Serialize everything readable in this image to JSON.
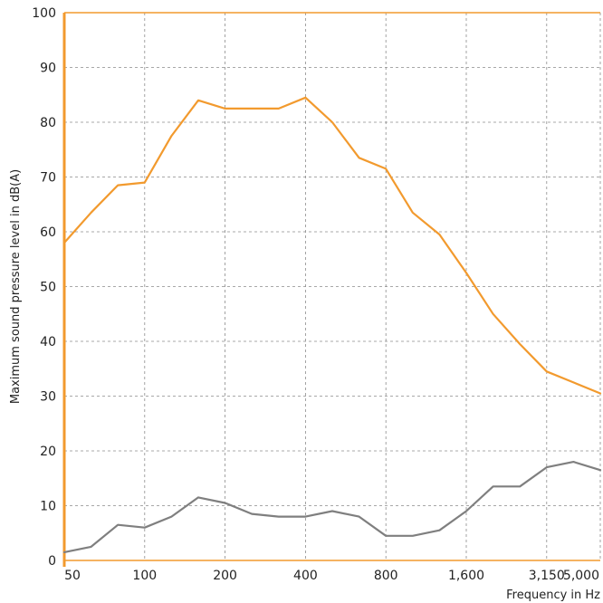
{
  "colors": {
    "accent": "#f29a2e",
    "series_gray": "#7f7f7f",
    "grid": "#8c8c8c",
    "text": "#222222"
  },
  "chart_data": {
    "type": "line",
    "title": "",
    "xlabel": "Frequency in Hz",
    "ylabel": "Maximum sound pressure level in dB(A)",
    "x_categories": [
      "50",
      "63",
      "80",
      "100",
      "125",
      "160",
      "200",
      "250",
      "315",
      "400",
      "500",
      "630",
      "800",
      "1,000",
      "1,250",
      "1,600",
      "2,000",
      "2,500",
      "3,150",
      "4,000",
      "5,000"
    ],
    "x_tick_labels": [
      "50",
      "100",
      "200",
      "400",
      "800",
      "1,600",
      "3,150",
      "5,000"
    ],
    "y_tick_labels": [
      "0",
      "10",
      "20",
      "30",
      "40",
      "50",
      "60",
      "70",
      "80",
      "90",
      "100"
    ],
    "ylim": [
      0,
      100
    ],
    "grid": true,
    "series": [
      {
        "color": "#f29a2e",
        "values": [
          58,
          63.5,
          68.5,
          69,
          77.5,
          84,
          82.5,
          82.5,
          82.5,
          84.5,
          80,
          73.5,
          71.5,
          63.5,
          59.5,
          52.5,
          45,
          39.5,
          34.5,
          32.5,
          30.5
        ]
      },
      {
        "color": "#7f7f7f",
        "values": [
          1.5,
          2.5,
          6.5,
          6,
          8,
          11.5,
          10.5,
          8.5,
          8,
          8,
          9,
          8,
          4.5,
          4.5,
          5.5,
          9,
          13.5,
          13.5,
          17,
          18,
          16.5
        ]
      }
    ]
  }
}
